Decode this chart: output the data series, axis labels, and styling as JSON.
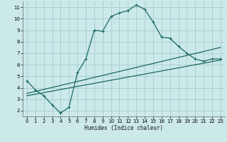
{
  "xlabel": "Humidex (Indice chaleur)",
  "background_color": "#cce9ea",
  "grid_color": "#aacfd1",
  "line_color": "#1a6b60",
  "xlim": [
    -0.5,
    23.5
  ],
  "ylim": [
    1.5,
    11.5
  ],
  "xticks": [
    0,
    1,
    2,
    3,
    4,
    5,
    6,
    7,
    8,
    9,
    10,
    11,
    12,
    13,
    14,
    15,
    16,
    17,
    18,
    19,
    20,
    21,
    22,
    23
  ],
  "yticks": [
    2,
    3,
    4,
    5,
    6,
    7,
    8,
    9,
    10,
    11
  ],
  "line1_x": [
    0,
    1,
    2,
    3,
    4,
    5,
    6,
    7,
    8,
    9,
    10,
    11,
    12,
    13,
    14,
    15,
    16,
    17,
    18,
    19,
    20,
    21,
    22,
    23
  ],
  "line1_y": [
    4.6,
    3.8,
    3.3,
    2.5,
    1.8,
    2.3,
    5.3,
    6.5,
    9.0,
    8.9,
    10.2,
    10.5,
    10.7,
    11.2,
    10.8,
    9.7,
    8.4,
    8.3,
    7.6,
    7.0,
    6.5,
    6.3,
    6.5,
    6.5
  ],
  "line2_x": [
    0,
    23
  ],
  "line2_y": [
    3.3,
    6.4
  ],
  "line3_x": [
    0,
    23
  ],
  "line3_y": [
    3.5,
    7.5
  ],
  "marker": "+"
}
